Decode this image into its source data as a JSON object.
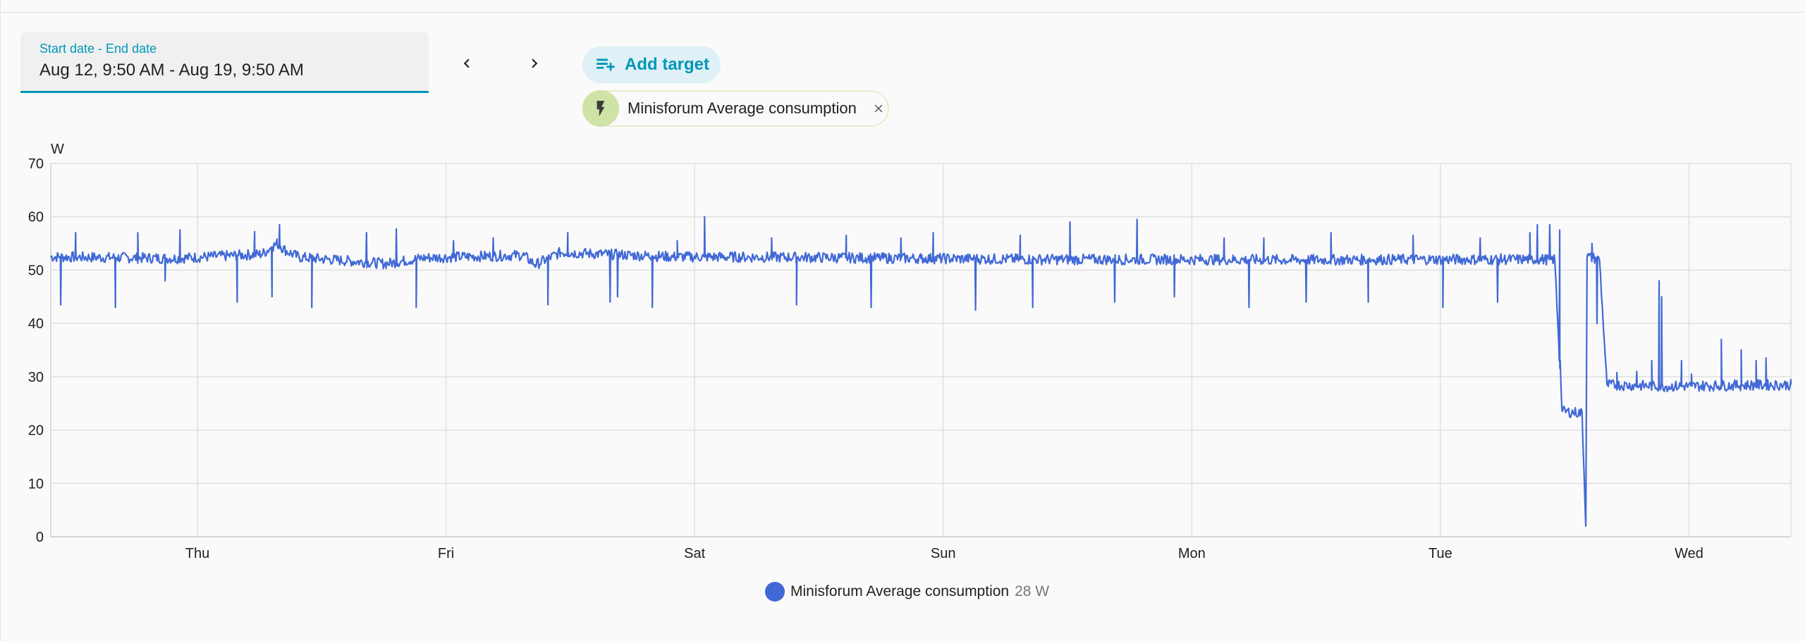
{
  "date_range": {
    "label": "Start date - End date",
    "value": "Aug 12, 9:50 AM - Aug 19, 9:50 AM"
  },
  "nav": {
    "prev_icon": "chevron-left-icon",
    "next_icon": "chevron-right-icon"
  },
  "add_target": {
    "label": "Add target",
    "icon": "playlist-plus-icon",
    "color": "#0097b8"
  },
  "target_chip": {
    "label": "Minisforum Average consumption",
    "icon": "flash-icon",
    "close_icon": "close-icon"
  },
  "legend": {
    "name": "Minisforum Average consumption",
    "value": "28 W",
    "color": "#4169d6"
  },
  "chart_data": {
    "type": "line",
    "ylabel": "W",
    "ylim": [
      0,
      70
    ],
    "yticks": [
      0,
      10,
      20,
      30,
      40,
      50,
      60,
      70
    ],
    "xlim": [
      0,
      7
    ],
    "xticks": [
      {
        "label": "Thu",
        "value": 0.59
      },
      {
        "label": "Fri",
        "value": 1.59
      },
      {
        "label": "Sat",
        "value": 2.59
      },
      {
        "label": "Sun",
        "value": 3.59
      },
      {
        "label": "Mon",
        "value": 4.59
      },
      {
        "label": "Tue",
        "value": 5.59
      },
      {
        "label": "Wed",
        "value": 6.59
      }
    ],
    "grid": true,
    "legend_position": "bottom",
    "series": [
      {
        "name": "Minisforum Average consumption",
        "color": "#4169d6",
        "points": [
          [
            0.0,
            52.5
          ],
          [
            0.5,
            52.2
          ],
          [
            0.85,
            53.0
          ],
          [
            0.91,
            55.0
          ],
          [
            0.95,
            53.5
          ],
          [
            1.0,
            52.4
          ],
          [
            1.35,
            51.2
          ],
          [
            1.5,
            52.3
          ],
          [
            1.9,
            52.8
          ],
          [
            1.95,
            51.0
          ],
          [
            2.05,
            53.3
          ],
          [
            2.5,
            52.5
          ],
          [
            3.0,
            52.4
          ],
          [
            3.5,
            52.2
          ],
          [
            4.0,
            52.0
          ],
          [
            4.5,
            52.0
          ],
          [
            5.0,
            51.9
          ],
          [
            5.5,
            52.0
          ],
          [
            6.05,
            52.0
          ],
          [
            6.08,
            23.5
          ],
          [
            6.16,
            23.2
          ],
          [
            6.175,
            2.0
          ],
          [
            6.18,
            52.5
          ],
          [
            6.23,
            52.0
          ],
          [
            6.26,
            28.5
          ],
          [
            6.5,
            28.2
          ],
          [
            6.8,
            28.4
          ],
          [
            7.0,
            28.5
          ]
        ],
        "spikes": [
          [
            0.04,
            43.5
          ],
          [
            0.1,
            57
          ],
          [
            0.26,
            43
          ],
          [
            0.35,
            57
          ],
          [
            0.46,
            48
          ],
          [
            0.52,
            57.5
          ],
          [
            0.75,
            44
          ],
          [
            0.82,
            57.2
          ],
          [
            0.89,
            45
          ],
          [
            0.92,
            58.5
          ],
          [
            1.05,
            43
          ],
          [
            1.27,
            57
          ],
          [
            1.39,
            57.7
          ],
          [
            1.47,
            43
          ],
          [
            1.62,
            55.5
          ],
          [
            1.78,
            56
          ],
          [
            2.0,
            43.5
          ],
          [
            2.08,
            57
          ],
          [
            2.25,
            44
          ],
          [
            2.28,
            45
          ],
          [
            2.42,
            43
          ],
          [
            2.52,
            55.5
          ],
          [
            2.63,
            60
          ],
          [
            2.9,
            56
          ],
          [
            3.0,
            43.5
          ],
          [
            3.2,
            56.5
          ],
          [
            3.3,
            43
          ],
          [
            3.42,
            56
          ],
          [
            3.55,
            57
          ],
          [
            3.72,
            42.5
          ],
          [
            3.9,
            56.5
          ],
          [
            3.95,
            43
          ],
          [
            4.1,
            59
          ],
          [
            4.28,
            44
          ],
          [
            4.37,
            59.5
          ],
          [
            4.52,
            45
          ],
          [
            4.72,
            56
          ],
          [
            4.82,
            43
          ],
          [
            4.88,
            56
          ],
          [
            5.05,
            44
          ],
          [
            5.15,
            57
          ],
          [
            5.3,
            44
          ],
          [
            5.48,
            56.5
          ],
          [
            5.6,
            43
          ],
          [
            5.75,
            56
          ],
          [
            5.82,
            44
          ],
          [
            5.95,
            57
          ],
          [
            5.98,
            58.5
          ],
          [
            6.03,
            58.5
          ],
          [
            6.07,
            57.5
          ],
          [
            6.2,
            55
          ],
          [
            6.22,
            40
          ],
          [
            6.3,
            30.8
          ],
          [
            6.38,
            31
          ],
          [
            6.44,
            33
          ],
          [
            6.47,
            48
          ],
          [
            6.48,
            45
          ],
          [
            6.56,
            33
          ],
          [
            6.6,
            30.5
          ],
          [
            6.72,
            37
          ],
          [
            6.8,
            35
          ],
          [
            6.86,
            33
          ],
          [
            6.9,
            33.5
          ]
        ]
      }
    ]
  }
}
